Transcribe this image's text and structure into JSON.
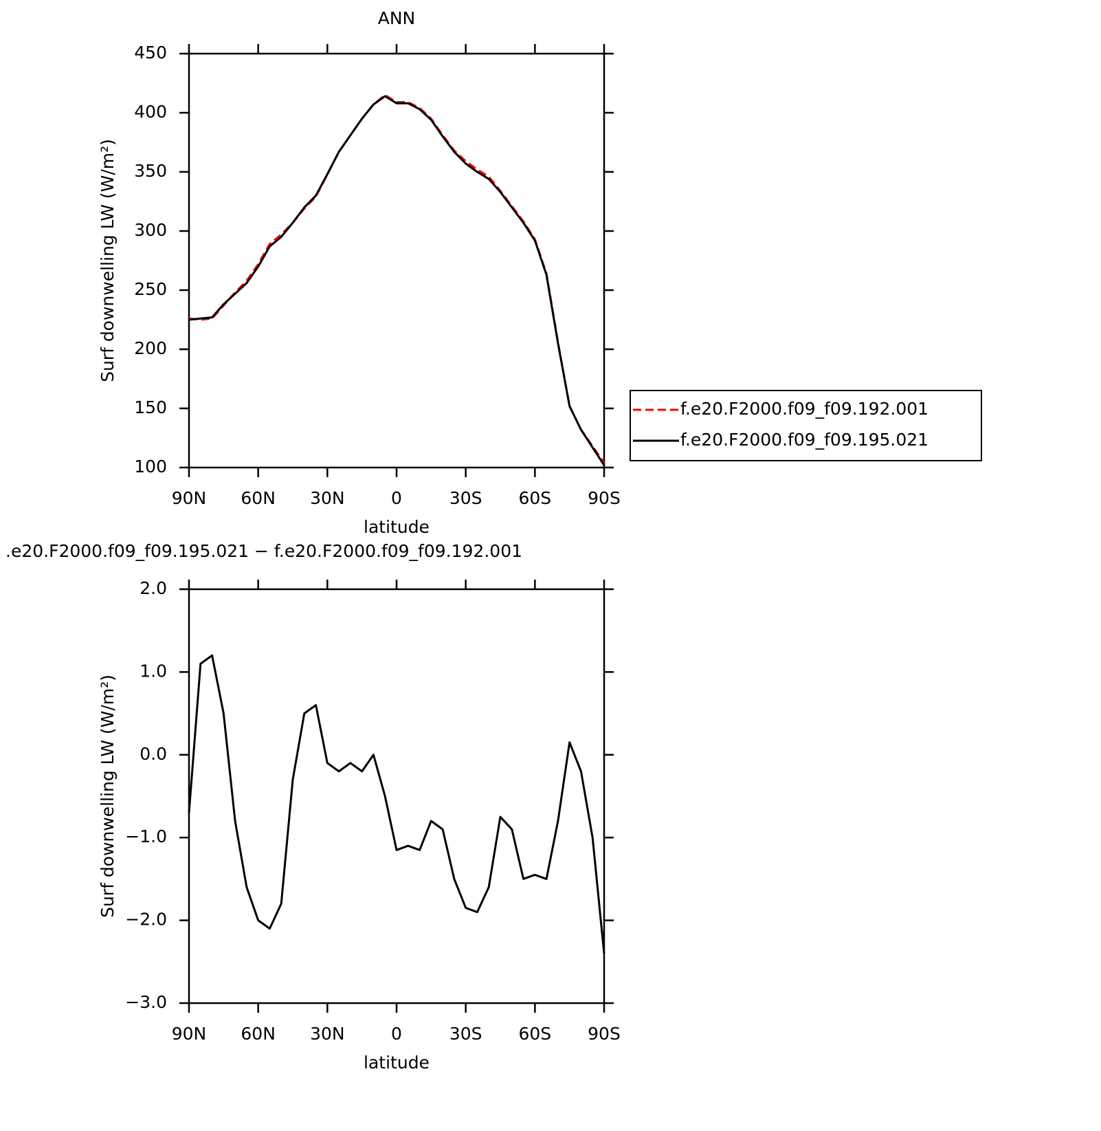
{
  "chart_data": [
    {
      "type": "line",
      "title": "ANN",
      "xlabel": "latitude",
      "ylabel": "Surf downwelling LW (W/m²)",
      "x": [
        90,
        85,
        80,
        75,
        70,
        65,
        60,
        55,
        50,
        45,
        40,
        35,
        30,
        25,
        20,
        15,
        10,
        5,
        0,
        -5,
        -10,
        -15,
        -20,
        -25,
        -30,
        -35,
        -40,
        -45,
        -50,
        -55,
        -60,
        -65,
        -70,
        -75,
        -80,
        -85,
        -90
      ],
      "xlim": [
        90,
        -90
      ],
      "xticks": [
        {
          "value": 90,
          "label": "90N"
        },
        {
          "value": 60,
          "label": "60N"
        },
        {
          "value": 30,
          "label": "30N"
        },
        0,
        {
          "value": -30,
          "label": "30S"
        },
        {
          "value": -60,
          "label": "60S"
        },
        {
          "value": -90,
          "label": "90S"
        }
      ],
      "ylim": [
        100,
        450
      ],
      "yticks": [
        100,
        150,
        200,
        250,
        300,
        350,
        400,
        450
      ],
      "legend": "right",
      "series": [
        {
          "name": "f.e20.F2000.f09_f09.192.001",
          "color": "#ff0000",
          "dash": true,
          "values": [
            226,
            225,
            226,
            237,
            248,
            258,
            272,
            289,
            297,
            307,
            319,
            329,
            348,
            367,
            381,
            395,
            407,
            415,
            409,
            409,
            404,
            395,
            381,
            368,
            359,
            352,
            346,
            334,
            321,
            308,
            293,
            264,
            206,
            152,
            132,
            118,
            104
          ]
        },
        {
          "name": "f.e20.F2000.f09_f09.195.021",
          "color": "#000000",
          "dash": false,
          "values": [
            225,
            226,
            227,
            238,
            247,
            256,
            270,
            287,
            295,
            307,
            320,
            330,
            348,
            367,
            381,
            395,
            407,
            414,
            408,
            408,
            403,
            394,
            380,
            367,
            357,
            350,
            344,
            333,
            320,
            307,
            292,
            263,
            205,
            152,
            132,
            117,
            102
          ]
        }
      ]
    },
    {
      "type": "line",
      "title": ".e20.F2000.f09_f09.195.021 − f.e20.F2000.f09_f09.192.001",
      "xlabel": "latitude",
      "ylabel": "Surf downwelling LW (W/m²)",
      "x": [
        90,
        85,
        80,
        75,
        70,
        65,
        60,
        55,
        50,
        45,
        40,
        35,
        30,
        25,
        20,
        15,
        10,
        5,
        0,
        -5,
        -10,
        -15,
        -20,
        -25,
        -30,
        -35,
        -40,
        -45,
        -50,
        -55,
        -60,
        -65,
        -70,
        -75,
        -80,
        -85,
        -90
      ],
      "xlim": [
        90,
        -90
      ],
      "xticks": [
        {
          "value": 90,
          "label": "90N"
        },
        {
          "value": 60,
          "label": "60N"
        },
        {
          "value": 30,
          "label": "30N"
        },
        0,
        {
          "value": -30,
          "label": "30S"
        },
        {
          "value": -60,
          "label": "60S"
        },
        {
          "value": -90,
          "label": "90S"
        }
      ],
      "ylim": [
        -3,
        2
      ],
      "yticks": [
        {
          "value": -3,
          "label": "−3.0"
        },
        {
          "value": -2,
          "label": "−2.0"
        },
        {
          "value": -1,
          "label": "−1.0"
        },
        {
          "value": 0,
          "label": "0.0"
        },
        {
          "value": 1,
          "label": "1.0"
        },
        {
          "value": 2,
          "label": "2.0"
        }
      ],
      "series": [
        {
          "color": "#000000",
          "dash": false,
          "values": [
            -0.7,
            1.1,
            1.2,
            0.5,
            -0.8,
            -1.6,
            -2.0,
            -2.1,
            -1.8,
            -0.3,
            0.5,
            0.6,
            -0.1,
            -0.2,
            -0.1,
            -0.2,
            0.0,
            -0.5,
            -1.15,
            -1.1,
            -1.15,
            -0.8,
            -0.9,
            -1.5,
            -1.85,
            -1.9,
            -1.6,
            -0.75,
            -0.9,
            -1.5,
            -1.45,
            -1.5,
            -0.8,
            0.15,
            -0.2,
            -1.0,
            -2.4
          ]
        }
      ]
    }
  ]
}
